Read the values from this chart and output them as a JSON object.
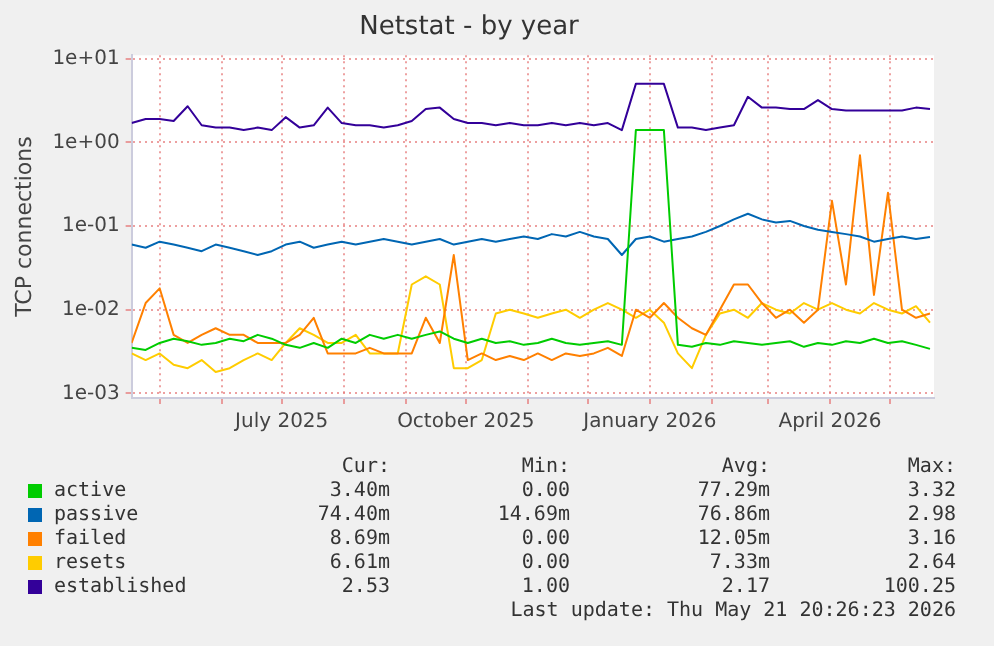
{
  "chart_data": {
    "type": "line",
    "title": "Netstat - by year",
    "ylabel": "TCP connections",
    "log": "y",
    "grid": true,
    "legend": "bottom",
    "marker": "none",
    "line_style": "solid",
    "x": [
      "2025-04-17",
      "2025-04-24",
      "2025-05-01",
      "2025-05-08",
      "2025-05-15",
      "2025-05-22",
      "2025-05-29",
      "2025-06-05",
      "2025-06-12",
      "2025-06-19",
      "2025-06-26",
      "2025-07-03",
      "2025-07-10",
      "2025-07-17",
      "2025-07-24",
      "2025-07-31",
      "2025-08-07",
      "2025-08-14",
      "2025-08-21",
      "2025-08-28",
      "2025-09-04",
      "2025-09-11",
      "2025-09-18",
      "2025-09-25",
      "2025-10-02",
      "2025-10-09",
      "2025-10-16",
      "2025-10-23",
      "2025-10-30",
      "2025-11-06",
      "2025-11-13",
      "2025-11-20",
      "2025-11-27",
      "2025-12-04",
      "2025-12-11",
      "2025-12-18",
      "2025-12-25",
      "2026-01-01",
      "2026-01-08",
      "2026-01-15",
      "2026-01-22",
      "2026-01-29",
      "2026-02-05",
      "2026-02-12",
      "2026-02-19",
      "2026-02-26",
      "2026-03-05",
      "2026-03-12",
      "2026-03-19",
      "2026-03-26",
      "2026-04-02",
      "2026-04-09",
      "2026-04-16",
      "2026-04-23",
      "2026-04-30",
      "2026-05-07",
      "2026-05-14",
      "2026-05-21"
    ],
    "xlim": [
      "2025-04-17",
      "2026-05-23"
    ],
    "xticks": [
      {
        "value": "2025-05-01",
        "label": null
      },
      {
        "value": "2025-06-01",
        "label": null
      },
      {
        "value": "2025-07-01",
        "label": "July 2025"
      },
      {
        "value": "2025-08-01",
        "label": null
      },
      {
        "value": "2025-09-01",
        "label": null
      },
      {
        "value": "2025-10-01",
        "label": "October 2025"
      },
      {
        "value": "2025-11-01",
        "label": null
      },
      {
        "value": "2025-12-01",
        "label": null
      },
      {
        "value": "2026-01-01",
        "label": "January 2026"
      },
      {
        "value": "2026-02-01",
        "label": null
      },
      {
        "value": "2026-03-01",
        "label": null
      },
      {
        "value": "2026-04-01",
        "label": "April 2026"
      },
      {
        "value": "2026-05-01",
        "label": null
      }
    ],
    "ylim": [
      0.00088,
      11
    ],
    "yticks": [
      {
        "value": 0.001,
        "label": "1e-03"
      },
      {
        "value": 0.01,
        "label": "1e-02"
      },
      {
        "value": 0.1,
        "label": "1e-01"
      },
      {
        "value": 1,
        "label": "1e+00"
      },
      {
        "value": 10,
        "label": "1e+01"
      }
    ],
    "series": [
      {
        "name": "active",
        "color": "#00cc00",
        "values": [
          0.0035,
          0.0033,
          0.004,
          0.0045,
          0.0042,
          0.0038,
          0.004,
          0.0045,
          0.0042,
          0.005,
          0.0045,
          0.0038,
          0.0035,
          0.004,
          0.0035,
          0.0045,
          0.004,
          0.005,
          0.0045,
          0.005,
          0.0045,
          0.005,
          0.0055,
          0.0045,
          0.004,
          0.0045,
          0.004,
          0.0042,
          0.0038,
          0.004,
          0.0045,
          0.004,
          0.0038,
          0.004,
          0.0042,
          0.0038,
          1.4,
          1.4,
          1.4,
          0.0038,
          0.0036,
          0.004,
          0.0038,
          0.0042,
          0.004,
          0.0038,
          0.004,
          0.0042,
          0.0036,
          0.004,
          0.0038,
          0.0042,
          0.004,
          0.0045,
          0.004,
          0.0042,
          0.0038,
          0.0034
        ]
      },
      {
        "name": "passive",
        "color": "#0066b3",
        "values": [
          0.06,
          0.055,
          0.065,
          0.06,
          0.055,
          0.05,
          0.06,
          0.055,
          0.05,
          0.045,
          0.05,
          0.06,
          0.065,
          0.055,
          0.06,
          0.065,
          0.06,
          0.065,
          0.07,
          0.065,
          0.06,
          0.065,
          0.07,
          0.06,
          0.065,
          0.07,
          0.065,
          0.07,
          0.075,
          0.07,
          0.08,
          0.075,
          0.085,
          0.075,
          0.07,
          0.045,
          0.07,
          0.075,
          0.065,
          0.07,
          0.075,
          0.085,
          0.1,
          0.12,
          0.14,
          0.12,
          0.11,
          0.115,
          0.1,
          0.09,
          0.085,
          0.08,
          0.075,
          0.065,
          0.07,
          0.075,
          0.07,
          0.074
        ]
      },
      {
        "name": "failed",
        "color": "#ff8000",
        "values": [
          0.004,
          0.012,
          0.018,
          0.005,
          0.004,
          0.005,
          0.006,
          0.005,
          0.005,
          0.004,
          0.004,
          0.004,
          0.005,
          0.008,
          0.003,
          0.003,
          0.003,
          0.0035,
          0.003,
          0.003,
          0.003,
          0.008,
          0.004,
          0.045,
          0.0025,
          0.003,
          0.0025,
          0.0028,
          0.0025,
          0.003,
          0.0025,
          0.003,
          0.0028,
          0.003,
          0.0035,
          0.0028,
          0.01,
          0.008,
          0.012,
          0.008,
          0.006,
          0.005,
          0.01,
          0.02,
          0.02,
          0.012,
          0.008,
          0.01,
          0.007,
          0.01,
          0.2,
          0.02,
          0.7,
          0.015,
          0.25,
          0.01,
          0.008,
          0.009
        ]
      },
      {
        "name": "resets",
        "color": "#ffcc00",
        "values": [
          0.003,
          0.0025,
          0.003,
          0.0022,
          0.002,
          0.0025,
          0.0018,
          0.002,
          0.0025,
          0.003,
          0.0025,
          0.004,
          0.006,
          0.005,
          0.004,
          0.004,
          0.005,
          0.003,
          0.003,
          0.003,
          0.02,
          0.025,
          0.02,
          0.002,
          0.002,
          0.0025,
          0.009,
          0.01,
          0.009,
          0.008,
          0.009,
          0.01,
          0.008,
          0.01,
          0.012,
          0.01,
          0.008,
          0.01,
          0.007,
          0.003,
          0.002,
          0.005,
          0.009,
          0.01,
          0.008,
          0.012,
          0.01,
          0.009,
          0.012,
          0.01,
          0.012,
          0.01,
          0.009,
          0.012,
          0.01,
          0.009,
          0.011,
          0.007
        ]
      },
      {
        "name": "established",
        "color": "#330099",
        "values": [
          1.7,
          1.9,
          1.9,
          1.8,
          2.7,
          1.6,
          1.5,
          1.5,
          1.4,
          1.5,
          1.4,
          2.0,
          1.5,
          1.6,
          2.6,
          1.7,
          1.6,
          1.6,
          1.5,
          1.6,
          1.8,
          2.5,
          2.6,
          1.9,
          1.7,
          1.7,
          1.6,
          1.7,
          1.6,
          1.6,
          1.7,
          1.6,
          1.7,
          1.6,
          1.7,
          1.4,
          5.0,
          5.0,
          5.0,
          1.5,
          1.5,
          1.4,
          1.5,
          1.6,
          3.5,
          2.6,
          2.6,
          2.5,
          2.5,
          3.2,
          2.5,
          2.4,
          2.4,
          2.4,
          2.4,
          2.4,
          2.6,
          2.5
        ]
      }
    ],
    "annotations": [
      "Cur:",
      "Min:",
      "Avg:",
      "Max:",
      "3.40m",
      "0.00",
      "77.29m",
      "3.32",
      "74.40m",
      "14.69m",
      "76.86m",
      "2.98",
      "8.69m",
      "0.00",
      "12.05m",
      "3.16",
      "6.61m",
      "0.00",
      "7.33m",
      "2.64",
      "2.53",
      "1.00",
      "2.17",
      "100.25",
      "Last update: Thu May 21 20:26:23 2026"
    ]
  }
}
